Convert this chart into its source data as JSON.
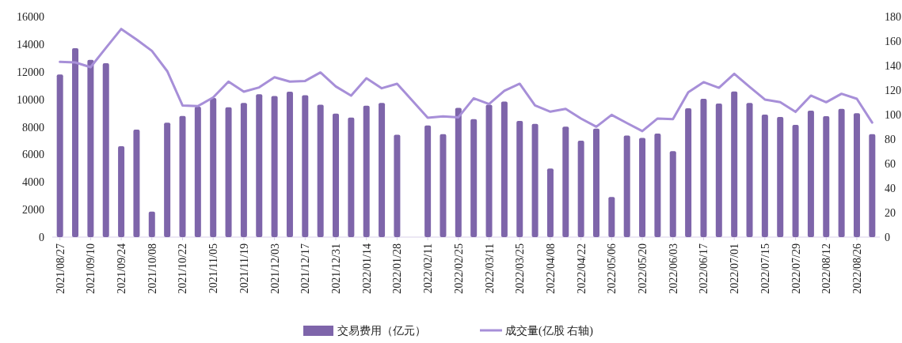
{
  "chart_data": {
    "type": "bar",
    "categories": [
      "2021/08/27",
      null,
      "2021/09/10",
      null,
      "2021/09/24",
      null,
      "2021/10/08",
      null,
      "2021/10/22",
      null,
      "2021/11/05",
      null,
      "2021/11/19",
      null,
      "2021/12/03",
      null,
      "2021/12/17",
      null,
      "2021/12/31",
      null,
      "2022/01/14",
      null,
      "2022/01/28",
      null,
      "2022/02/11",
      null,
      "2022/02/25",
      null,
      "2022/03/11",
      null,
      "2022/03/25",
      null,
      "2022/04/08",
      null,
      "2022/04/22",
      null,
      "2022/05/06",
      null,
      "2022/05/20",
      null,
      "2022/06/03",
      null,
      "2022/06/17",
      null,
      "2022/07/01",
      null,
      "2022/07/15",
      null,
      "2022/07/29",
      null,
      "2022/08/12",
      null,
      "2022/08/26",
      null
    ],
    "series": [
      {
        "name": "交易费用（亿元）",
        "color": "#7e65aa",
        "values": [
          11800,
          13700,
          12860,
          12610,
          6590,
          7800,
          1850,
          8300,
          8790,
          9460,
          10090,
          9420,
          9730,
          10360,
          10230,
          10550,
          10300,
          9610,
          8960,
          8680,
          9540,
          9730,
          7430,
          null,
          8100,
          7470,
          9380,
          8560,
          9600,
          9840,
          8430,
          8220,
          4970,
          8010,
          7000,
          7870,
          2910,
          7370,
          7200,
          7510,
          6230,
          9350,
          10030,
          9690,
          10570,
          9730,
          8890,
          8720,
          8140,
          9170,
          8770,
          9310,
          8990,
          7470
        ]
      },
      {
        "name": "成交量(亿股 右轴)",
        "type": "line",
        "axis": "y2",
        "color": "#a78fd8",
        "values": [
          143,
          142.6,
          138.7,
          154.4,
          169.9,
          161.3,
          152,
          135.5,
          107.5,
          106.9,
          114,
          126.9,
          118.7,
          122.2,
          130.5,
          126.9,
          127.5,
          134.4,
          123,
          115.5,
          129.7,
          121.5,
          125.2,
          null,
          97.4,
          98.5,
          97.8,
          113.3,
          108.6,
          119.4,
          125.2,
          107.5,
          102.4,
          104.7,
          96.8,
          90.1,
          99.8,
          93.1,
          86.5,
          96.8,
          96.3,
          118.3,
          126.5,
          121.9,
          133.3,
          122.6,
          112.3,
          110.1,
          102.2,
          115.5,
          110.1,
          117,
          112.9,
          93.5
        ]
      }
    ],
    "ylim": [
      0,
      16000
    ],
    "yticks": [
      0,
      2000,
      4000,
      6000,
      8000,
      10000,
      12000,
      14000,
      16000
    ],
    "y2lim": [
      0,
      180
    ],
    "y2ticks": [
      0,
      20,
      40,
      60,
      80,
      100,
      120,
      140,
      160,
      180
    ],
    "legend": "bottom"
  }
}
